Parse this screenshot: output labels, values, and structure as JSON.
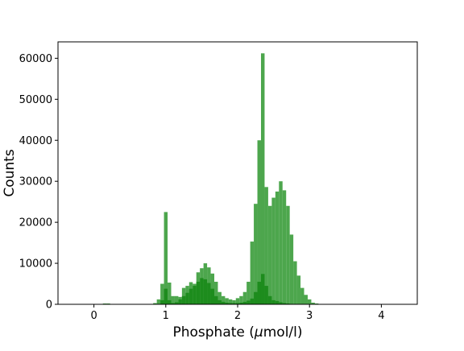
{
  "chart_data": {
    "type": "bar",
    "subtype": "histogram",
    "xlabel_prefix": "Phosphate (",
    "xlabel_unit": "μmol/l)",
    "xlabel_mu": "μ",
    "xlabel_rest": "mol/l)",
    "ylabel": "Counts",
    "xlim": [
      -0.5,
      4.5
    ],
    "ylim": [
      0,
      64000
    ],
    "xticks": [
      0,
      1,
      2,
      3,
      4
    ],
    "xtick_labels": [
      "0",
      "1",
      "2",
      "3",
      "4"
    ],
    "yticks": [
      0,
      10000,
      20000,
      30000,
      40000,
      50000,
      60000
    ],
    "ytick_labels": [
      "0",
      "10000",
      "20000",
      "30000",
      "40000",
      "50000",
      "60000"
    ],
    "grid": false,
    "bin_width": 0.05,
    "series": [
      {
        "color": "#3a9c3a",
        "opacity": 0.9,
        "bins": [
          [
            0.15,
            200
          ],
          [
            0.2,
            200
          ],
          [
            0.85,
            300
          ],
          [
            0.9,
            1200
          ],
          [
            0.95,
            5000
          ],
          [
            1.0,
            22500
          ],
          [
            1.05,
            5300
          ],
          [
            1.1,
            2000
          ],
          [
            1.15,
            2000
          ],
          [
            1.2,
            1800
          ],
          [
            1.25,
            4000
          ],
          [
            1.3,
            4500
          ],
          [
            1.35,
            5400
          ],
          [
            1.4,
            5000
          ],
          [
            1.45,
            7800
          ],
          [
            1.5,
            8800
          ],
          [
            1.55,
            10000
          ],
          [
            1.6,
            9000
          ],
          [
            1.65,
            7500
          ],
          [
            1.7,
            5500
          ],
          [
            1.75,
            3000
          ],
          [
            1.8,
            2000
          ],
          [
            1.85,
            1500
          ],
          [
            1.9,
            1200
          ],
          [
            1.95,
            1000
          ],
          [
            2.0,
            1500
          ],
          [
            2.05,
            2000
          ],
          [
            2.1,
            3000
          ],
          [
            2.15,
            5500
          ],
          [
            2.2,
            15300
          ],
          [
            2.25,
            24500
          ],
          [
            2.3,
            40000
          ],
          [
            2.35,
            61200
          ],
          [
            2.4,
            28600
          ],
          [
            2.45,
            24000
          ],
          [
            2.5,
            26000
          ],
          [
            2.55,
            27500
          ],
          [
            2.6,
            30000
          ],
          [
            2.65,
            27800
          ],
          [
            2.7,
            24000
          ],
          [
            2.75,
            17000
          ],
          [
            2.8,
            10500
          ],
          [
            2.85,
            7000
          ],
          [
            2.9,
            4000
          ],
          [
            2.95,
            2300
          ],
          [
            3.0,
            1200
          ],
          [
            3.05,
            400
          ],
          [
            3.1,
            200
          ]
        ]
      },
      {
        "color": "#1a8a1a",
        "opacity": 0.95,
        "bins": [
          [
            0.95,
            1000
          ],
          [
            1.0,
            3800
          ],
          [
            1.05,
            1000
          ],
          [
            1.1,
            300
          ],
          [
            1.15,
            500
          ],
          [
            1.2,
            1200
          ],
          [
            1.25,
            2000
          ],
          [
            1.3,
            2800
          ],
          [
            1.35,
            3800
          ],
          [
            1.4,
            4500
          ],
          [
            1.45,
            5500
          ],
          [
            1.5,
            6400
          ],
          [
            1.55,
            6100
          ],
          [
            1.6,
            5200
          ],
          [
            1.65,
            3800
          ],
          [
            1.7,
            2000
          ],
          [
            1.75,
            1000
          ],
          [
            1.8,
            600
          ],
          [
            1.85,
            400
          ],
          [
            1.9,
            300
          ],
          [
            1.95,
            300
          ],
          [
            2.0,
            300
          ],
          [
            2.05,
            400
          ],
          [
            2.1,
            600
          ],
          [
            2.15,
            900
          ],
          [
            2.2,
            1400
          ],
          [
            2.25,
            3000
          ],
          [
            2.3,
            5500
          ],
          [
            2.35,
            7400
          ],
          [
            2.4,
            4500
          ],
          [
            2.45,
            2000
          ],
          [
            2.5,
            1000
          ],
          [
            2.55,
            800
          ],
          [
            2.6,
            500
          ],
          [
            2.65,
            300
          ],
          [
            2.7,
            200
          ]
        ]
      }
    ]
  }
}
